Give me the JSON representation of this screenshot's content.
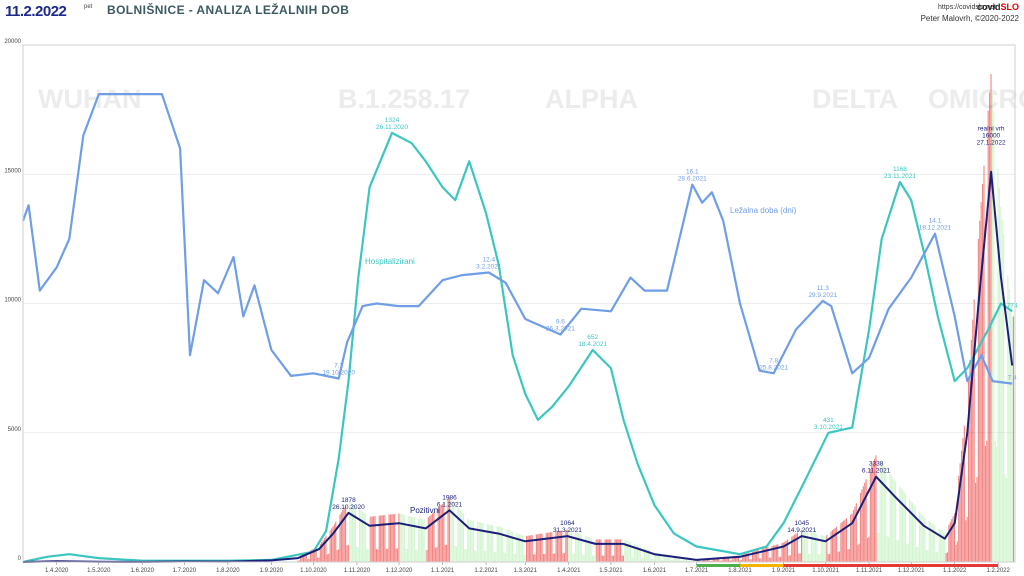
{
  "header": {
    "date": "11.2.2022",
    "weekday": "pet",
    "title": "BOLNIŠNICE - ANALIZA LEŽALNIH DOB",
    "url": "https://covidslo.net",
    "brand_main": "covid",
    "brand_accent": "SLO",
    "author": "Peter Malovrh, ©2020-2022"
  },
  "colors": {
    "hospitalized": "#3cc6c0",
    "stay": "#6f9ee6",
    "positive": "#1c1f7a",
    "bars_red": "#e8231f",
    "bars_green": "#9ee89a"
  },
  "chart_data": {
    "type": "line",
    "title": "BOLNIŠNICE - ANALIZA LEŽALNIH DOB",
    "ylim": [
      0,
      20000
    ],
    "yticks": [
      "0",
      "5000",
      "10000",
      "15000",
      "20000"
    ],
    "xticks": [
      "1.4.2020",
      "1.5.2020",
      "1.6.2020",
      "1.7.2020",
      "1.8.2020",
      "1.9.2020",
      "1.10.2020",
      "1.11.2020",
      "1.12.2020",
      "1.1.2021",
      "1.2.2021",
      "1.3.2021",
      "1.4.2021",
      "1.5.2021",
      "1.6.2021",
      "1.7.2021",
      "1.8.2021",
      "1.9.2021",
      "1.10.2021",
      "1.11.2021",
      "1.12.2021",
      "1.1.2022",
      "1.2.2022"
    ],
    "watermarks": [
      "WUHAN",
      "B.1.258.17",
      "ALPHA",
      "DELTA",
      "OMICRON"
    ],
    "series_labels": {
      "hospitalized": "Hospitalizirani",
      "stay": "Ležalna doba (dni)",
      "positive": "Pozitivni"
    },
    "annotations": [
      {
        "series": "hospitalized",
        "lines": [
          "1324",
          "26.11.2020"
        ],
        "date": "26.11.2020",
        "y": 16600
      },
      {
        "series": "hospitalized",
        "lines": [
          "652",
          "18.4.2021"
        ],
        "date": "18.4.2021",
        "y": 8200
      },
      {
        "series": "hospitalized",
        "lines": [
          "431",
          "3.10.2021"
        ],
        "date": "3.10.2021",
        "y": 5000
      },
      {
        "series": "hospitalized",
        "lines": [
          "1168",
          "23.11.2021"
        ],
        "date": "23.11.2021",
        "y": 14700
      },
      {
        "series": "hospitalized",
        "lines": [
          "774"
        ],
        "date": "11.2.2022",
        "y": 9700
      },
      {
        "series": "stay",
        "lines": [
          "7.7",
          "19.10.2020"
        ],
        "date": "19.10.2020",
        "y": 7100
      },
      {
        "series": "stay",
        "lines": [
          "12.4",
          "3.2.2021"
        ],
        "date": "3.2.2021",
        "y": 11200
      },
      {
        "series": "stay",
        "lines": [
          "9.6",
          "26.3.2021"
        ],
        "date": "26.3.2021",
        "y": 8800
      },
      {
        "series": "stay",
        "lines": [
          "16.1",
          "28.6.2021"
        ],
        "date": "28.6.2021",
        "y": 14600
      },
      {
        "series": "stay",
        "lines": [
          "7.8",
          "25.8.2021"
        ],
        "date": "25.8.2021",
        "y": 7300
      },
      {
        "series": "stay",
        "lines": [
          "11.3",
          "29.9.2021"
        ],
        "date": "29.9.2021",
        "y": 10100
      },
      {
        "series": "stay",
        "lines": [
          "14.1",
          "18.12.2021"
        ],
        "date": "18.12.2021",
        "y": 12700
      },
      {
        "series": "stay",
        "lines": [
          "7.4"
        ],
        "date": "11.2.2022",
        "y": 6900
      },
      {
        "series": "positive",
        "lines": [
          "1878",
          "26.10.2020"
        ],
        "date": "26.10.2020",
        "y": 1900
      },
      {
        "series": "positive",
        "lines": [
          "1986",
          "6.1.2021"
        ],
        "date": "6.1.2021",
        "y": 2000
      },
      {
        "series": "positive",
        "lines": [
          "1064",
          "31.3.2021"
        ],
        "date": "31.3.2021",
        "y": 1000
      },
      {
        "series": "positive",
        "lines": [
          "1045",
          "14.9.2021"
        ],
        "date": "14.9.2021",
        "y": 1000
      },
      {
        "series": "positive",
        "lines": [
          "3338",
          "6.11.2021"
        ],
        "date": "6.11.2021",
        "y": 3300
      },
      {
        "series": "positive",
        "lines": [
          "realni vrh",
          "16000",
          "27.1.2022"
        ],
        "date": "27.1.2022",
        "y": 16000
      }
    ],
    "series": [
      {
        "name": "Hospitalizirani",
        "key": "hospitalized",
        "points": [
          [
            "2020-03-08",
            0
          ],
          [
            "2020-03-25",
            200
          ],
          [
            "2020-04-10",
            300
          ],
          [
            "2020-05-01",
            150
          ],
          [
            "2020-06-01",
            50
          ],
          [
            "2020-07-01",
            50
          ],
          [
            "2020-08-01",
            50
          ],
          [
            "2020-09-01",
            80
          ],
          [
            "2020-10-01",
            400
          ],
          [
            "2020-10-10",
            1200
          ],
          [
            "2020-10-19",
            4000
          ],
          [
            "2020-10-26",
            7000
          ],
          [
            "2020-11-02",
            11000
          ],
          [
            "2020-11-10",
            14500
          ],
          [
            "2020-11-26",
            16600
          ],
          [
            "2020-12-10",
            16200
          ],
          [
            "2020-12-20",
            15500
          ],
          [
            "2021-01-01",
            14500
          ],
          [
            "2021-01-10",
            14000
          ],
          [
            "2021-01-20",
            15500
          ],
          [
            "2021-02-01",
            13500
          ],
          [
            "2021-02-10",
            11500
          ],
          [
            "2021-02-20",
            8000
          ],
          [
            "2021-03-01",
            6500
          ],
          [
            "2021-03-10",
            5500
          ],
          [
            "2021-03-20",
            6000
          ],
          [
            "2021-04-01",
            6800
          ],
          [
            "2021-04-18",
            8200
          ],
          [
            "2021-05-01",
            7500
          ],
          [
            "2021-05-10",
            5500
          ],
          [
            "2021-05-20",
            3800
          ],
          [
            "2021-06-01",
            2200
          ],
          [
            "2021-06-15",
            1100
          ],
          [
            "2021-07-01",
            600
          ],
          [
            "2021-08-01",
            300
          ],
          [
            "2021-08-20",
            600
          ],
          [
            "2021-09-01",
            1500
          ],
          [
            "2021-09-15",
            3000
          ],
          [
            "2021-10-03",
            5000
          ],
          [
            "2021-10-20",
            5200
          ],
          [
            "2021-11-01",
            9000
          ],
          [
            "2021-11-10",
            12500
          ],
          [
            "2021-11-23",
            14700
          ],
          [
            "2021-12-01",
            14000
          ],
          [
            "2021-12-10",
            12000
          ],
          [
            "2021-12-20",
            9500
          ],
          [
            "2022-01-01",
            7000
          ],
          [
            "2022-01-10",
            7500
          ],
          [
            "2022-01-25",
            9000
          ],
          [
            "2022-02-03",
            10000
          ],
          [
            "2022-02-11",
            9700
          ]
        ]
      },
      {
        "name": "Ležalna doba (dni)",
        "key": "stay",
        "points": [
          [
            "2020-03-08",
            13200
          ],
          [
            "2020-03-12",
            13800
          ],
          [
            "2020-03-20",
            10500
          ],
          [
            "2020-04-01",
            11400
          ],
          [
            "2020-04-10",
            12500
          ],
          [
            "2020-04-20",
            16500
          ],
          [
            "2020-05-01",
            18100
          ],
          [
            "2020-05-15",
            18100
          ],
          [
            "2020-06-01",
            18100
          ],
          [
            "2020-06-15",
            18100
          ],
          [
            "2020-06-28",
            16000
          ],
          [
            "2020-07-05",
            8000
          ],
          [
            "2020-07-15",
            10900
          ],
          [
            "2020-07-25",
            10400
          ],
          [
            "2020-08-05",
            11800
          ],
          [
            "2020-08-12",
            9500
          ],
          [
            "2020-08-20",
            10700
          ],
          [
            "2020-09-01",
            8200
          ],
          [
            "2020-09-15",
            7200
          ],
          [
            "2020-10-01",
            7300
          ],
          [
            "2020-10-19",
            7100
          ],
          [
            "2020-10-25",
            8500
          ],
          [
            "2020-11-05",
            9900
          ],
          [
            "2020-11-15",
            10000
          ],
          [
            "2020-12-01",
            9900
          ],
          [
            "2020-12-15",
            9900
          ],
          [
            "2021-01-01",
            10900
          ],
          [
            "2021-01-15",
            11100
          ],
          [
            "2021-02-03",
            11200
          ],
          [
            "2021-02-15",
            10800
          ],
          [
            "2021-03-01",
            9400
          ],
          [
            "2021-03-26",
            8800
          ],
          [
            "2021-04-10",
            9800
          ],
          [
            "2021-05-01",
            9700
          ],
          [
            "2021-05-15",
            11000
          ],
          [
            "2021-05-25",
            10500
          ],
          [
            "2021-06-10",
            10500
          ],
          [
            "2021-06-28",
            14600
          ],
          [
            "2021-07-05",
            13900
          ],
          [
            "2021-07-12",
            14300
          ],
          [
            "2021-07-20",
            13200
          ],
          [
            "2021-08-01",
            10000
          ],
          [
            "2021-08-15",
            7400
          ],
          [
            "2021-08-25",
            7300
          ],
          [
            "2021-09-10",
            9000
          ],
          [
            "2021-09-29",
            10100
          ],
          [
            "2021-10-05",
            9900
          ],
          [
            "2021-10-20",
            7300
          ],
          [
            "2021-11-01",
            7900
          ],
          [
            "2021-11-15",
            9800
          ],
          [
            "2021-12-01",
            11000
          ],
          [
            "2021-12-18",
            12700
          ],
          [
            "2022-01-01",
            9500
          ],
          [
            "2022-01-10",
            7000
          ],
          [
            "2022-01-20",
            8000
          ],
          [
            "2022-01-28",
            7000
          ],
          [
            "2022-02-11",
            6900
          ]
        ]
      },
      {
        "name": "Pozitivni",
        "key": "positive",
        "points": [
          [
            "2020-03-08",
            0
          ],
          [
            "2020-04-01",
            30
          ],
          [
            "2020-05-01",
            10
          ],
          [
            "2020-06-01",
            5
          ],
          [
            "2020-07-01",
            20
          ],
          [
            "2020-08-01",
            15
          ],
          [
            "2020-09-01",
            60
          ],
          [
            "2020-09-20",
            150
          ],
          [
            "2020-10-05",
            500
          ],
          [
            "2020-10-15",
            1100
          ],
          [
            "2020-10-26",
            1900
          ],
          [
            "2020-11-10",
            1400
          ],
          [
            "2020-12-01",
            1500
          ],
          [
            "2020-12-20",
            1300
          ],
          [
            "2021-01-06",
            2000
          ],
          [
            "2021-01-20",
            1300
          ],
          [
            "2021-02-10",
            1100
          ],
          [
            "2021-03-01",
            800
          ],
          [
            "2021-03-31",
            1000
          ],
          [
            "2021-04-20",
            700
          ],
          [
            "2021-05-10",
            700
          ],
          [
            "2021-06-01",
            300
          ],
          [
            "2021-07-01",
            80
          ],
          [
            "2021-08-01",
            200
          ],
          [
            "2021-09-01",
            600
          ],
          [
            "2021-09-14",
            1000
          ],
          [
            "2021-10-01",
            800
          ],
          [
            "2021-10-20",
            1500
          ],
          [
            "2021-11-06",
            3300
          ],
          [
            "2021-11-20",
            2500
          ],
          [
            "2021-12-10",
            1400
          ],
          [
            "2021-12-25",
            900
          ],
          [
            "2022-01-01",
            1500
          ],
          [
            "2022-01-10",
            5000
          ],
          [
            "2022-01-18",
            10000
          ],
          [
            "2022-01-27",
            15100
          ],
          [
            "2022-02-03",
            11000
          ],
          [
            "2022-02-11",
            7600
          ]
        ]
      }
    ]
  }
}
